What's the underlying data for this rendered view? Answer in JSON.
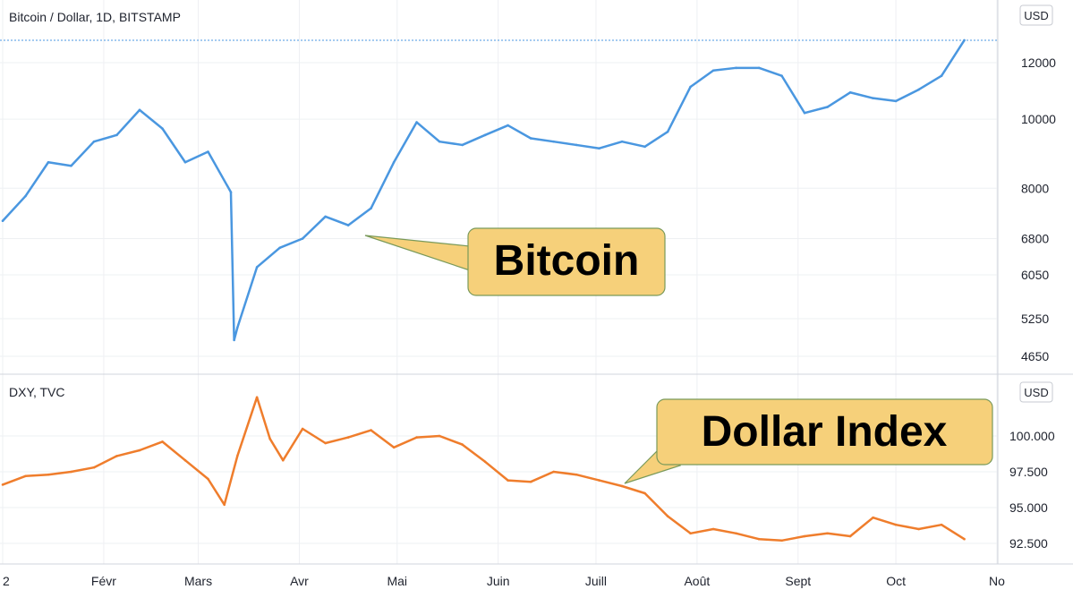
{
  "chart_data": [
    {
      "type": "line",
      "title": "Bitcoin / Dollar, 1D, BITSTAMP",
      "currency_label": "USD",
      "y_scale": "log",
      "y_ticks": [
        "12000",
        "10000",
        "8000",
        "6800",
        "6050",
        "5250",
        "4650"
      ],
      "last_value_line": "dotted",
      "color": "#4a97e0",
      "callout": "Bitcoin",
      "x": [
        "2020-01-01",
        "2020-01-08",
        "2020-01-15",
        "2020-01-22",
        "2020-01-29",
        "2020-02-05",
        "2020-02-12",
        "2020-02-19",
        "2020-02-26",
        "2020-03-04",
        "2020-03-11",
        "2020-03-12",
        "2020-03-13",
        "2020-03-19",
        "2020-03-26",
        "2020-04-02",
        "2020-04-09",
        "2020-04-16",
        "2020-04-23",
        "2020-04-30",
        "2020-05-07",
        "2020-05-14",
        "2020-05-21",
        "2020-05-28",
        "2020-06-04",
        "2020-06-11",
        "2020-06-18",
        "2020-06-25",
        "2020-07-02",
        "2020-07-09",
        "2020-07-16",
        "2020-07-23",
        "2020-07-30",
        "2020-08-06",
        "2020-08-13",
        "2020-08-20",
        "2020-08-27",
        "2020-09-03",
        "2020-09-10",
        "2020-09-17",
        "2020-09-24",
        "2020-10-01",
        "2020-10-08",
        "2020-10-15",
        "2020-10-22"
      ],
      "values": [
        7200,
        7800,
        8700,
        8600,
        9300,
        9500,
        10300,
        9700,
        8700,
        9000,
        7900,
        4900,
        5100,
        6200,
        6600,
        6800,
        7300,
        7100,
        7500,
        8700,
        9900,
        9300,
        9200,
        9500,
        9800,
        9400,
        9300,
        9200,
        9100,
        9300,
        9150,
        9600,
        11100,
        11700,
        11800,
        11800,
        11500,
        10200,
        10400,
        10900,
        10700,
        10600,
        11000,
        11500,
        12900
      ]
    },
    {
      "type": "line",
      "title": "DXY, TVC",
      "currency_label": "USD",
      "y_ticks": [
        "100.000",
        "97.500",
        "95.000",
        "92.500"
      ],
      "color": "#ef7d2c",
      "callout": "Dollar Index",
      "x": [
        "2020-01-01",
        "2020-01-08",
        "2020-01-15",
        "2020-01-22",
        "2020-01-29",
        "2020-02-05",
        "2020-02-12",
        "2020-02-19",
        "2020-02-26",
        "2020-03-04",
        "2020-03-09",
        "2020-03-13",
        "2020-03-19",
        "2020-03-23",
        "2020-03-27",
        "2020-04-02",
        "2020-04-09",
        "2020-04-16",
        "2020-04-23",
        "2020-04-30",
        "2020-05-07",
        "2020-05-14",
        "2020-05-21",
        "2020-05-28",
        "2020-06-04",
        "2020-06-11",
        "2020-06-18",
        "2020-06-25",
        "2020-07-02",
        "2020-07-09",
        "2020-07-16",
        "2020-07-23",
        "2020-07-30",
        "2020-08-06",
        "2020-08-13",
        "2020-08-20",
        "2020-08-27",
        "2020-09-03",
        "2020-09-10",
        "2020-09-17",
        "2020-09-24",
        "2020-10-01",
        "2020-10-08",
        "2020-10-15",
        "2020-10-22"
      ],
      "values": [
        96.6,
        97.2,
        97.3,
        97.5,
        97.8,
        98.6,
        99.0,
        99.6,
        98.3,
        97.0,
        95.2,
        98.6,
        102.7,
        99.8,
        98.3,
        100.5,
        99.5,
        99.9,
        100.4,
        99.2,
        99.9,
        100.0,
        99.4,
        98.2,
        96.9,
        96.8,
        97.5,
        97.3,
        96.9,
        96.5,
        96.0,
        94.4,
        93.2,
        93.5,
        93.2,
        92.8,
        92.7,
        93.0,
        93.2,
        93.0,
        94.3,
        93.8,
        93.5,
        93.8,
        92.8
      ]
    }
  ],
  "x_axis": {
    "labels": [
      "2",
      "Févr",
      "Mars",
      "Avr",
      "Mai",
      "Juin",
      "Juill",
      "Août",
      "Sept",
      "Oct",
      "No"
    ]
  }
}
